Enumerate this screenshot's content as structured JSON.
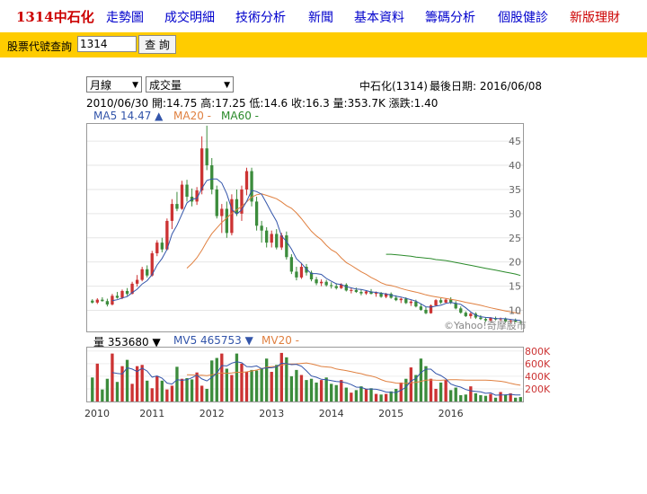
{
  "nav": {
    "brand": "1314中石化",
    "links": [
      "走勢圖",
      "成交明細",
      "技術分析",
      "新聞",
      "基本資料",
      "籌碼分析",
      "個股健診",
      "新版理財"
    ]
  },
  "search": {
    "label": "股票代號查詢",
    "value": "1314",
    "button": "查 詢"
  },
  "controls": {
    "period": "月線",
    "indicator": "成交量"
  },
  "header": {
    "name": "中石化(1314)",
    "last_date": "最後日期: 2016/06/08"
  },
  "ohlc_line": "2010/06/30 開:14.75 高:17.25 低:14.6 收:16.3 量:353.7K 漲跌:1.40",
  "ma_legend": {
    "ma5": "MA5 14.47 ▲",
    "ma20": "MA20 -",
    "ma60": "MA60 -"
  },
  "vol_legend": {
    "vol": "量 353680 ▼",
    "mv5": "MV5 465753 ▼",
    "mv20": "MV20 -"
  },
  "watermark": "©Yahoo!奇摩股市",
  "colors": {
    "up": "#cc3333",
    "down": "#3c8c3c",
    "ma5": "#3355aa",
    "ma20": "#e08040",
    "ma60": "#2a8a2a",
    "axis_label": "#cc3333"
  },
  "chart_data": [
    {
      "type": "candlestick",
      "title": "",
      "ylabel_ticks": [
        10,
        15,
        20,
        25,
        30,
        35,
        40,
        45
      ],
      "ylim": [
        6,
        48
      ],
      "x_ticks": [
        "2010",
        "2011",
        "2012",
        "2013",
        "2014",
        "2015",
        "2016"
      ],
      "start": "2010-01",
      "ohlc": [
        [
          12.0,
          12.3,
          11.4,
          11.6
        ],
        [
          11.6,
          12.5,
          11.3,
          12.2
        ],
        [
          12.2,
          12.7,
          11.8,
          11.9
        ],
        [
          11.9,
          12.4,
          10.8,
          11.2
        ],
        [
          11.2,
          13.4,
          11.0,
          13.0
        ],
        [
          13.0,
          13.8,
          12.4,
          12.6
        ],
        [
          12.6,
          14.3,
          12.3,
          14.0
        ],
        [
          14.0,
          14.6,
          13.0,
          13.4
        ],
        [
          13.4,
          15.9,
          13.3,
          15.5
        ],
        [
          15.5,
          17.3,
          14.9,
          16.3
        ],
        [
          16.3,
          19.0,
          16.0,
          18.5
        ],
        [
          18.5,
          19.3,
          16.8,
          17.2
        ],
        [
          17.2,
          22.3,
          17.0,
          21.8
        ],
        [
          21.8,
          24.5,
          21.2,
          24.0
        ],
        [
          24.0,
          25.0,
          22.0,
          22.6
        ],
        [
          22.6,
          29.0,
          22.4,
          28.5
        ],
        [
          28.5,
          33.0,
          26.8,
          32.0
        ],
        [
          32.0,
          34.5,
          30.5,
          31.0
        ],
        [
          31.0,
          36.8,
          30.8,
          36.0
        ],
        [
          36.0,
          37.0,
          32.5,
          33.5
        ],
        [
          33.5,
          35.2,
          31.5,
          32.5
        ],
        [
          32.5,
          35.5,
          31.8,
          34.8
        ],
        [
          34.8,
          46.0,
          34.0,
          43.5
        ],
        [
          43.5,
          48.2,
          39.0,
          40.0
        ],
        [
          40.0,
          41.5,
          34.0,
          35.0
        ],
        [
          35.0,
          35.8,
          29.0,
          29.5
        ],
        [
          29.5,
          32.0,
          26.0,
          31.0
        ],
        [
          31.0,
          32.5,
          25.0,
          26.0
        ],
        [
          26.0,
          34.0,
          25.5,
          33.0
        ],
        [
          33.0,
          35.0,
          29.5,
          30.0
        ],
        [
          30.0,
          35.8,
          28.5,
          35.0
        ],
        [
          35.0,
          39.5,
          33.8,
          38.8
        ],
        [
          38.8,
          39.5,
          31.5,
          32.5
        ],
        [
          32.5,
          33.5,
          26.5,
          27.5
        ],
        [
          27.5,
          28.5,
          24.0,
          26.5
        ],
        [
          26.5,
          27.2,
          23.0,
          24.0
        ],
        [
          24.0,
          26.5,
          23.0,
          25.8
        ],
        [
          25.8,
          26.8,
          22.6,
          23.0
        ],
        [
          23.0,
          26.0,
          22.5,
          25.5
        ],
        [
          25.5,
          26.3,
          20.5,
          21.0
        ],
        [
          21.0,
          21.6,
          17.5,
          18.0
        ],
        [
          18.0,
          19.0,
          16.2,
          16.8
        ],
        [
          16.8,
          19.8,
          16.5,
          19.0
        ],
        [
          19.0,
          19.6,
          17.2,
          17.8
        ],
        [
          17.8,
          18.2,
          16.0,
          16.4
        ],
        [
          16.4,
          16.9,
          15.2,
          15.6
        ],
        [
          15.6,
          16.4,
          15.0,
          15.9
        ],
        [
          15.9,
          16.3,
          14.9,
          15.2
        ],
        [
          15.2,
          15.8,
          14.5,
          15.0
        ],
        [
          15.0,
          15.6,
          14.3,
          14.6
        ],
        [
          14.6,
          15.6,
          14.4,
          15.3
        ],
        [
          15.3,
          15.6,
          13.9,
          14.1
        ],
        [
          14.1,
          14.6,
          13.5,
          14.2
        ],
        [
          14.2,
          14.7,
          13.6,
          13.8
        ],
        [
          13.8,
          14.3,
          13.1,
          13.5
        ],
        [
          13.5,
          14.1,
          13.2,
          13.9
        ],
        [
          13.9,
          14.4,
          13.3,
          13.4
        ],
        [
          13.4,
          13.9,
          12.8,
          13.6
        ],
        [
          13.6,
          13.8,
          12.6,
          12.8
        ],
        [
          12.8,
          13.6,
          12.5,
          13.4
        ],
        [
          13.4,
          13.7,
          12.4,
          12.6
        ],
        [
          12.6,
          13.1,
          11.9,
          12.1
        ],
        [
          12.1,
          12.6,
          11.5,
          12.4
        ],
        [
          12.4,
          12.7,
          11.3,
          11.5
        ],
        [
          11.5,
          12.1,
          10.9,
          11.8
        ],
        [
          11.8,
          12.2,
          10.6,
          10.8
        ],
        [
          10.8,
          11.4,
          9.9,
          10.1
        ],
        [
          10.1,
          10.7,
          9.2,
          9.4
        ],
        [
          9.4,
          11.2,
          9.3,
          11.0
        ],
        [
          11.0,
          12.3,
          10.9,
          12.1
        ],
        [
          12.1,
          12.5,
          11.3,
          11.6
        ],
        [
          11.6,
          12.5,
          11.4,
          12.2
        ],
        [
          12.2,
          12.7,
          11.3,
          11.5
        ],
        [
          11.5,
          11.9,
          10.2,
          10.4
        ],
        [
          10.4,
          10.8,
          9.3,
          9.5
        ],
        [
          9.5,
          9.8,
          8.6,
          8.8
        ],
        [
          8.8,
          9.6,
          8.3,
          9.3
        ],
        [
          9.3,
          9.6,
          8.2,
          8.5
        ],
        [
          8.5,
          9.0,
          8.0,
          8.2
        ],
        [
          8.2,
          8.6,
          7.6,
          7.9
        ],
        [
          7.9,
          8.6,
          7.6,
          8.4
        ],
        [
          8.4,
          8.7,
          7.9,
          8.1
        ],
        [
          8.1,
          8.5,
          7.8,
          8.3
        ],
        [
          8.3,
          8.5,
          7.5,
          7.7
        ],
        [
          7.7,
          8.1,
          7.3,
          7.9
        ],
        [
          7.9,
          8.3,
          7.5,
          7.6
        ],
        [
          7.6,
          7.9,
          7.2,
          7.4
        ]
      ],
      "ma5": [
        null,
        null,
        null,
        null,
        11.98,
        12.18,
        12.54,
        12.84,
        13.66,
        14.36,
        15.44,
        16.12,
        17.4,
        19.36,
        20.72,
        22.62,
        25.78,
        27.62,
        29.92,
        32.2,
        33.0,
        33.16,
        35.26,
        36.86,
        37.16,
        37.16,
        36.32,
        34.1,
        30.9,
        29.9,
        30.8,
        32.56,
        34.82,
        34.56,
        34.02,
        32.12,
        30.22,
        28.4,
        25.36,
        24.26,
        22.66,
        20.66,
        19.7,
        18.52,
        17.6,
        17.6,
        17.42,
        16.6,
        16.02,
        15.48,
        15.34,
        14.88,
        14.64,
        14.4,
        14.32,
        14.08,
        13.8,
        13.72,
        13.52,
        13.38,
        13.16,
        12.94,
        12.74,
        12.46,
        12.2,
        11.9,
        11.34,
        10.72,
        10.64,
        10.86,
        11.04,
        11.42,
        11.62,
        11.44,
        11.24,
        10.52,
        9.68,
        9.0,
        8.68,
        8.52,
        8.48,
        8.28,
        8.26,
        8.24,
        8.12,
        8.0,
        7.92
      ],
      "ma20": [
        null,
        null,
        null,
        null,
        null,
        null,
        null,
        null,
        null,
        null,
        null,
        null,
        null,
        null,
        null,
        null,
        null,
        null,
        null,
        18.71,
        19.68,
        20.86,
        22.45,
        24.26,
        25.85,
        27.03,
        28.17,
        29.12,
        30.06,
        30.83,
        31.47,
        32.44,
        33.43,
        33.91,
        34.09,
        33.79,
        33.43,
        33.07,
        32.43,
        31.67,
        31.1,
        30.16,
        28.95,
        27.64,
        26.36,
        25.39,
        24.6,
        23.45,
        22.53,
        21.94,
        20.85,
        19.88,
        19.29,
        18.62,
        17.96,
        17.45,
        16.79,
        16.27,
        15.7,
        15.3,
        15.12,
        14.87,
        14.52,
        14.23,
        13.99,
        13.76,
        13.5,
        13.2,
        12.97,
        12.78,
        12.62,
        12.45,
        12.28,
        12.12,
        11.9,
        11.65,
        11.46,
        11.24,
        11.03,
        10.77,
        10.51,
        10.29,
        10.08,
        9.87,
        9.69,
        9.5,
        9.3
      ],
      "ma60_from_index": 59,
      "ma60": [
        21.6,
        21.6,
        21.5,
        21.4,
        21.3,
        21.2,
        21.0,
        20.9,
        20.8,
        20.7,
        20.5,
        20.4,
        20.3,
        20.1,
        19.9,
        19.7,
        19.5,
        19.3,
        19.1,
        18.9,
        18.7,
        18.5,
        18.3,
        18.1,
        17.9,
        17.7,
        17.5,
        17.2
      ]
    },
    {
      "type": "bar",
      "title": "",
      "ylabel_ticks": [
        "200K",
        "400K",
        "600K",
        "800K"
      ],
      "ylim": [
        0,
        840000
      ],
      "volume": [
        380000,
        600000,
        190000,
        360000,
        760000,
        310000,
        560000,
        660000,
        280000,
        560000,
        580000,
        330000,
        210000,
        400000,
        330000,
        190000,
        250000,
        550000,
        360000,
        370000,
        350000,
        460000,
        250000,
        200000,
        650000,
        690000,
        760000,
        520000,
        420000,
        760000,
        600000,
        470000,
        500000,
        490000,
        530000,
        680000,
        470000,
        580000,
        770000,
        700000,
        400000,
        500000,
        420000,
        340000,
        360000,
        300000,
        340000,
        380000,
        280000,
        260000,
        340000,
        220000,
        140000,
        180000,
        240000,
        200000,
        210000,
        120000,
        110000,
        120000,
        160000,
        200000,
        300000,
        360000,
        540000,
        420000,
        680000,
        560000,
        360000,
        200000,
        300000,
        340000,
        180000,
        220000,
        100000,
        110000,
        240000,
        130000,
        100000,
        90000,
        120000,
        60000,
        150000,
        110000,
        130000,
        60000,
        70000
      ],
      "mv5": [
        null,
        null,
        null,
        null,
        458000,
        444000,
        436000,
        534000,
        514000,
        474000,
        528000,
        482000,
        386000,
        406000,
        370000,
        292000,
        276000,
        344000,
        336000,
        344000,
        376000,
        418000,
        358000,
        326000,
        382000,
        450000,
        570000,
        564000,
        608000,
        630000,
        614000,
        554000,
        550000,
        564000,
        520000,
        534000,
        534000,
        550000,
        606000,
        600000,
        584000,
        590000,
        558000,
        486000,
        404000,
        384000,
        352000,
        344000,
        332000,
        316000,
        312000,
        296000,
        268000,
        228000,
        224000,
        196000,
        198000,
        194000,
        176000,
        150000,
        144000,
        142000,
        178000,
        228000,
        324000,
        364000,
        460000,
        512000,
        512000,
        444000,
        412000,
        360000,
        276000,
        248000,
        228000,
        190000,
        170000,
        160000,
        152000,
        130000,
        136000,
        100000,
        104000,
        106000,
        114000,
        104000,
        104000
      ],
      "mv20": [
        null,
        null,
        null,
        null,
        null,
        null,
        null,
        null,
        null,
        null,
        null,
        null,
        null,
        null,
        null,
        null,
        null,
        null,
        null,
        424000,
        422000,
        414000,
        417000,
        409000,
        423000,
        442000,
        452000,
        445000,
        452000,
        462000,
        463000,
        470000,
        484000,
        499000,
        519000,
        543000,
        554000,
        555000,
        575000,
        592000,
        594000,
        596000,
        604000,
        611000,
        596000,
        576000,
        555000,
        548000,
        541000,
        516000,
        503000,
        490000,
        472000,
        456000,
        442000,
        418000,
        404000,
        381000,
        348000,
        319000,
        307000,
        292000,
        286000,
        287000,
        296000,
        302000,
        319000,
        337000,
        341000,
        338000,
        336000,
        342000,
        344000,
        346000,
        342000,
        337000,
        338000,
        339000,
        338000,
        337000,
        335000,
        328000,
        320000,
        308000,
        288000,
        270000,
        258000
      ]
    }
  ]
}
